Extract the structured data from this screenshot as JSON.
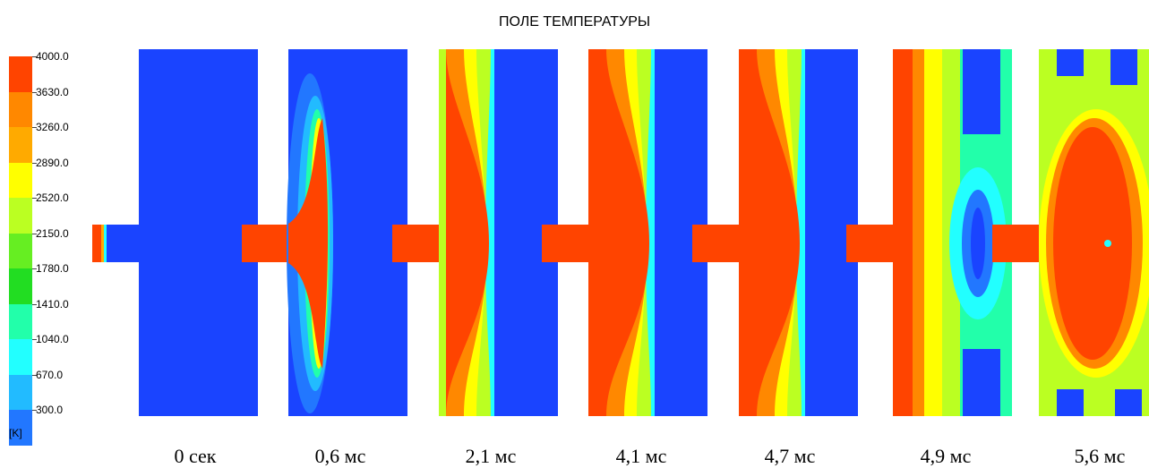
{
  "title": "ПОЛЕ ТЕМПЕРАТУРЫ",
  "legend": {
    "ticks": [
      "4000.0",
      "3630.0",
      "3260.0",
      "2890.0",
      "2520.0",
      "2150.0",
      "1780.0",
      "1410.0",
      "1040.0",
      "670.0",
      "300.0"
    ],
    "unit": "[K]",
    "colors": [
      "#ff4400",
      "#ff8800",
      "#ffaa00",
      "#ffff00",
      "#bbff22",
      "#66ee22",
      "#22dd22",
      "#22ffaa",
      "#22ffff",
      "#22bbff",
      "#2277ff",
      "#1a44ff"
    ]
  },
  "panels": [
    {
      "caption": "0 сек"
    },
    {
      "caption": "0,6 мс"
    },
    {
      "caption": "2,1 мс"
    },
    {
      "caption": "4,1 мс"
    },
    {
      "caption": "4,7 мс"
    },
    {
      "caption": "4,9 мс"
    },
    {
      "caption": "5,6 мс"
    }
  ]
}
